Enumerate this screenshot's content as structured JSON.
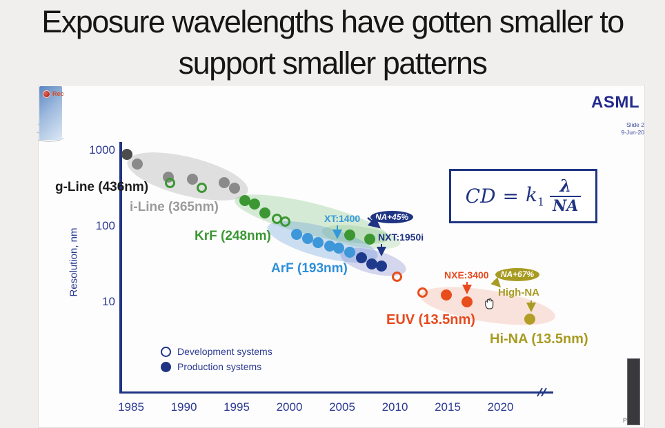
{
  "page": {
    "title_line1": "Exposure wavelengths have gotten smaller to",
    "title_line2": "support smaller patterns"
  },
  "slide": {
    "logo": "ASML",
    "note_line1": "Slide 2",
    "note_line2": "9-Jun-20",
    "rec_label": "Rec",
    "watermark": "P"
  },
  "formula": {
    "cd": "CD",
    "equals": "=",
    "coefficient": "k",
    "coefficient_sub": "1",
    "numerator": "λ",
    "denominator": "NA"
  },
  "legend": {
    "development": "Development systems",
    "production": "Production systems"
  },
  "colors": {
    "navy": "#1f3483",
    "gray_dot": "#8a8a8a",
    "green": "#3c9733",
    "light_blue": "#3d97d9",
    "navy_dot": "#1e3a8c",
    "orange": "#e84e1b",
    "gold": "#b29d26",
    "badge_na45_bg": "#1f3483",
    "badge_na67_bg": "#a89b22"
  },
  "chart_data": {
    "type": "scatter",
    "title": "",
    "xlabel": "",
    "ylabel": "Resolution, nm",
    "y_scale": "log",
    "ylim": [
      3,
      1500
    ],
    "x_ticks": [
      "1985",
      "1990",
      "1995",
      "2000",
      "2005",
      "2010",
      "2015",
      "2020"
    ],
    "y_ticks": [
      "1000",
      "100",
      "10"
    ],
    "x_axis_break_after": "2020",
    "grid": false,
    "series": [
      {
        "id": "hg-lamp-production",
        "name": "g-Line / i-Line mercury lamp (production)",
        "color": "#8a8a8a",
        "marker": "filled",
        "points": [
          [
            1984.6,
            860,
            "#4c4c4c"
          ],
          [
            1985.6,
            640
          ],
          [
            1988.5,
            430
          ],
          [
            1990.8,
            405
          ],
          [
            1993.8,
            365
          ],
          [
            1994.8,
            310
          ]
        ]
      },
      {
        "id": "development-open-green",
        "name": "Development systems (green open)",
        "color": "#3c9733",
        "marker": "open",
        "points": [
          [
            1988.7,
            365
          ],
          [
            1991.7,
            310
          ],
          [
            1998.8,
            123
          ],
          [
            1999.6,
            113
          ]
        ]
      },
      {
        "id": "krf-production",
        "name": "KrF (248nm) production",
        "color": "#3c9733",
        "marker": "filled",
        "points": [
          [
            1995.8,
            212
          ],
          [
            1996.7,
            190
          ],
          [
            1997.7,
            146
          ],
          [
            2005.7,
            74
          ],
          [
            2007.6,
            66
          ]
        ]
      },
      {
        "id": "arf-dry-production",
        "name": "ArF (193nm) dry production",
        "color": "#3d97d9",
        "marker": "filled",
        "points": [
          [
            2000.7,
            76
          ],
          [
            2001.7,
            67
          ],
          [
            2002.7,
            59
          ],
          [
            2003.8,
            53
          ],
          [
            2004.7,
            50
          ],
          [
            2005.7,
            44
          ]
        ]
      },
      {
        "id": "arf-immersion-production",
        "name": "ArF immersion (NXT:1950i) production",
        "color": "#1e3a8c",
        "marker": "filled",
        "points": [
          [
            2006.8,
            37
          ],
          [
            2007.8,
            31
          ],
          [
            2008.7,
            29
          ]
        ]
      },
      {
        "id": "euv-development",
        "name": "EUV (13.5nm) development",
        "color": "#e84e1b",
        "marker": "open",
        "points": [
          [
            2010.2,
            21
          ],
          [
            2012.6,
            13
          ]
        ]
      },
      {
        "id": "euv-production",
        "name": "EUV (13.5nm) production",
        "color": "#e84e1b",
        "marker": "filled",
        "points": [
          [
            2014.9,
            12
          ],
          [
            2016.8,
            9.8
          ]
        ]
      },
      {
        "id": "hi-na-euv",
        "name": "Hi-NA EUV (13.5nm)",
        "color": "#b29d26",
        "marker": "filled",
        "points": [
          [
            2022.8,
            5.8
          ]
        ]
      }
    ],
    "annotations": {
      "g_line": {
        "text": "g-Line (436nm)",
        "color": "#1c1c1c"
      },
      "i_line": {
        "text": "i-Line (365nm)",
        "color": "#9b9b9b"
      },
      "krf": {
        "text": "KrF (248nm)",
        "color": "#3c9733"
      },
      "arf": {
        "text": "ArF (193nm)",
        "color": "#2e8fd8"
      },
      "xt1400": {
        "text": "XT:1400",
        "color": "#3398d8"
      },
      "nxt1950i": {
        "text": "NXT:1950i",
        "color": "#1f3483"
      },
      "nxe3400": {
        "text": "NXE:3400",
        "color": "#e8481c"
      },
      "high_na": {
        "text": "High-NA",
        "color": "#a89b22"
      },
      "euv": {
        "text": "EUV (13.5nm)",
        "color": "#e8481c"
      },
      "hi_na": {
        "text": "Hi-NA (13.5nm)",
        "color": "#a89b22"
      },
      "na45_badge": {
        "text": "NA+45%",
        "bg": "#1f3483"
      },
      "na67_badge": {
        "text": "NA+67%",
        "bg": "#a89b22"
      }
    }
  }
}
